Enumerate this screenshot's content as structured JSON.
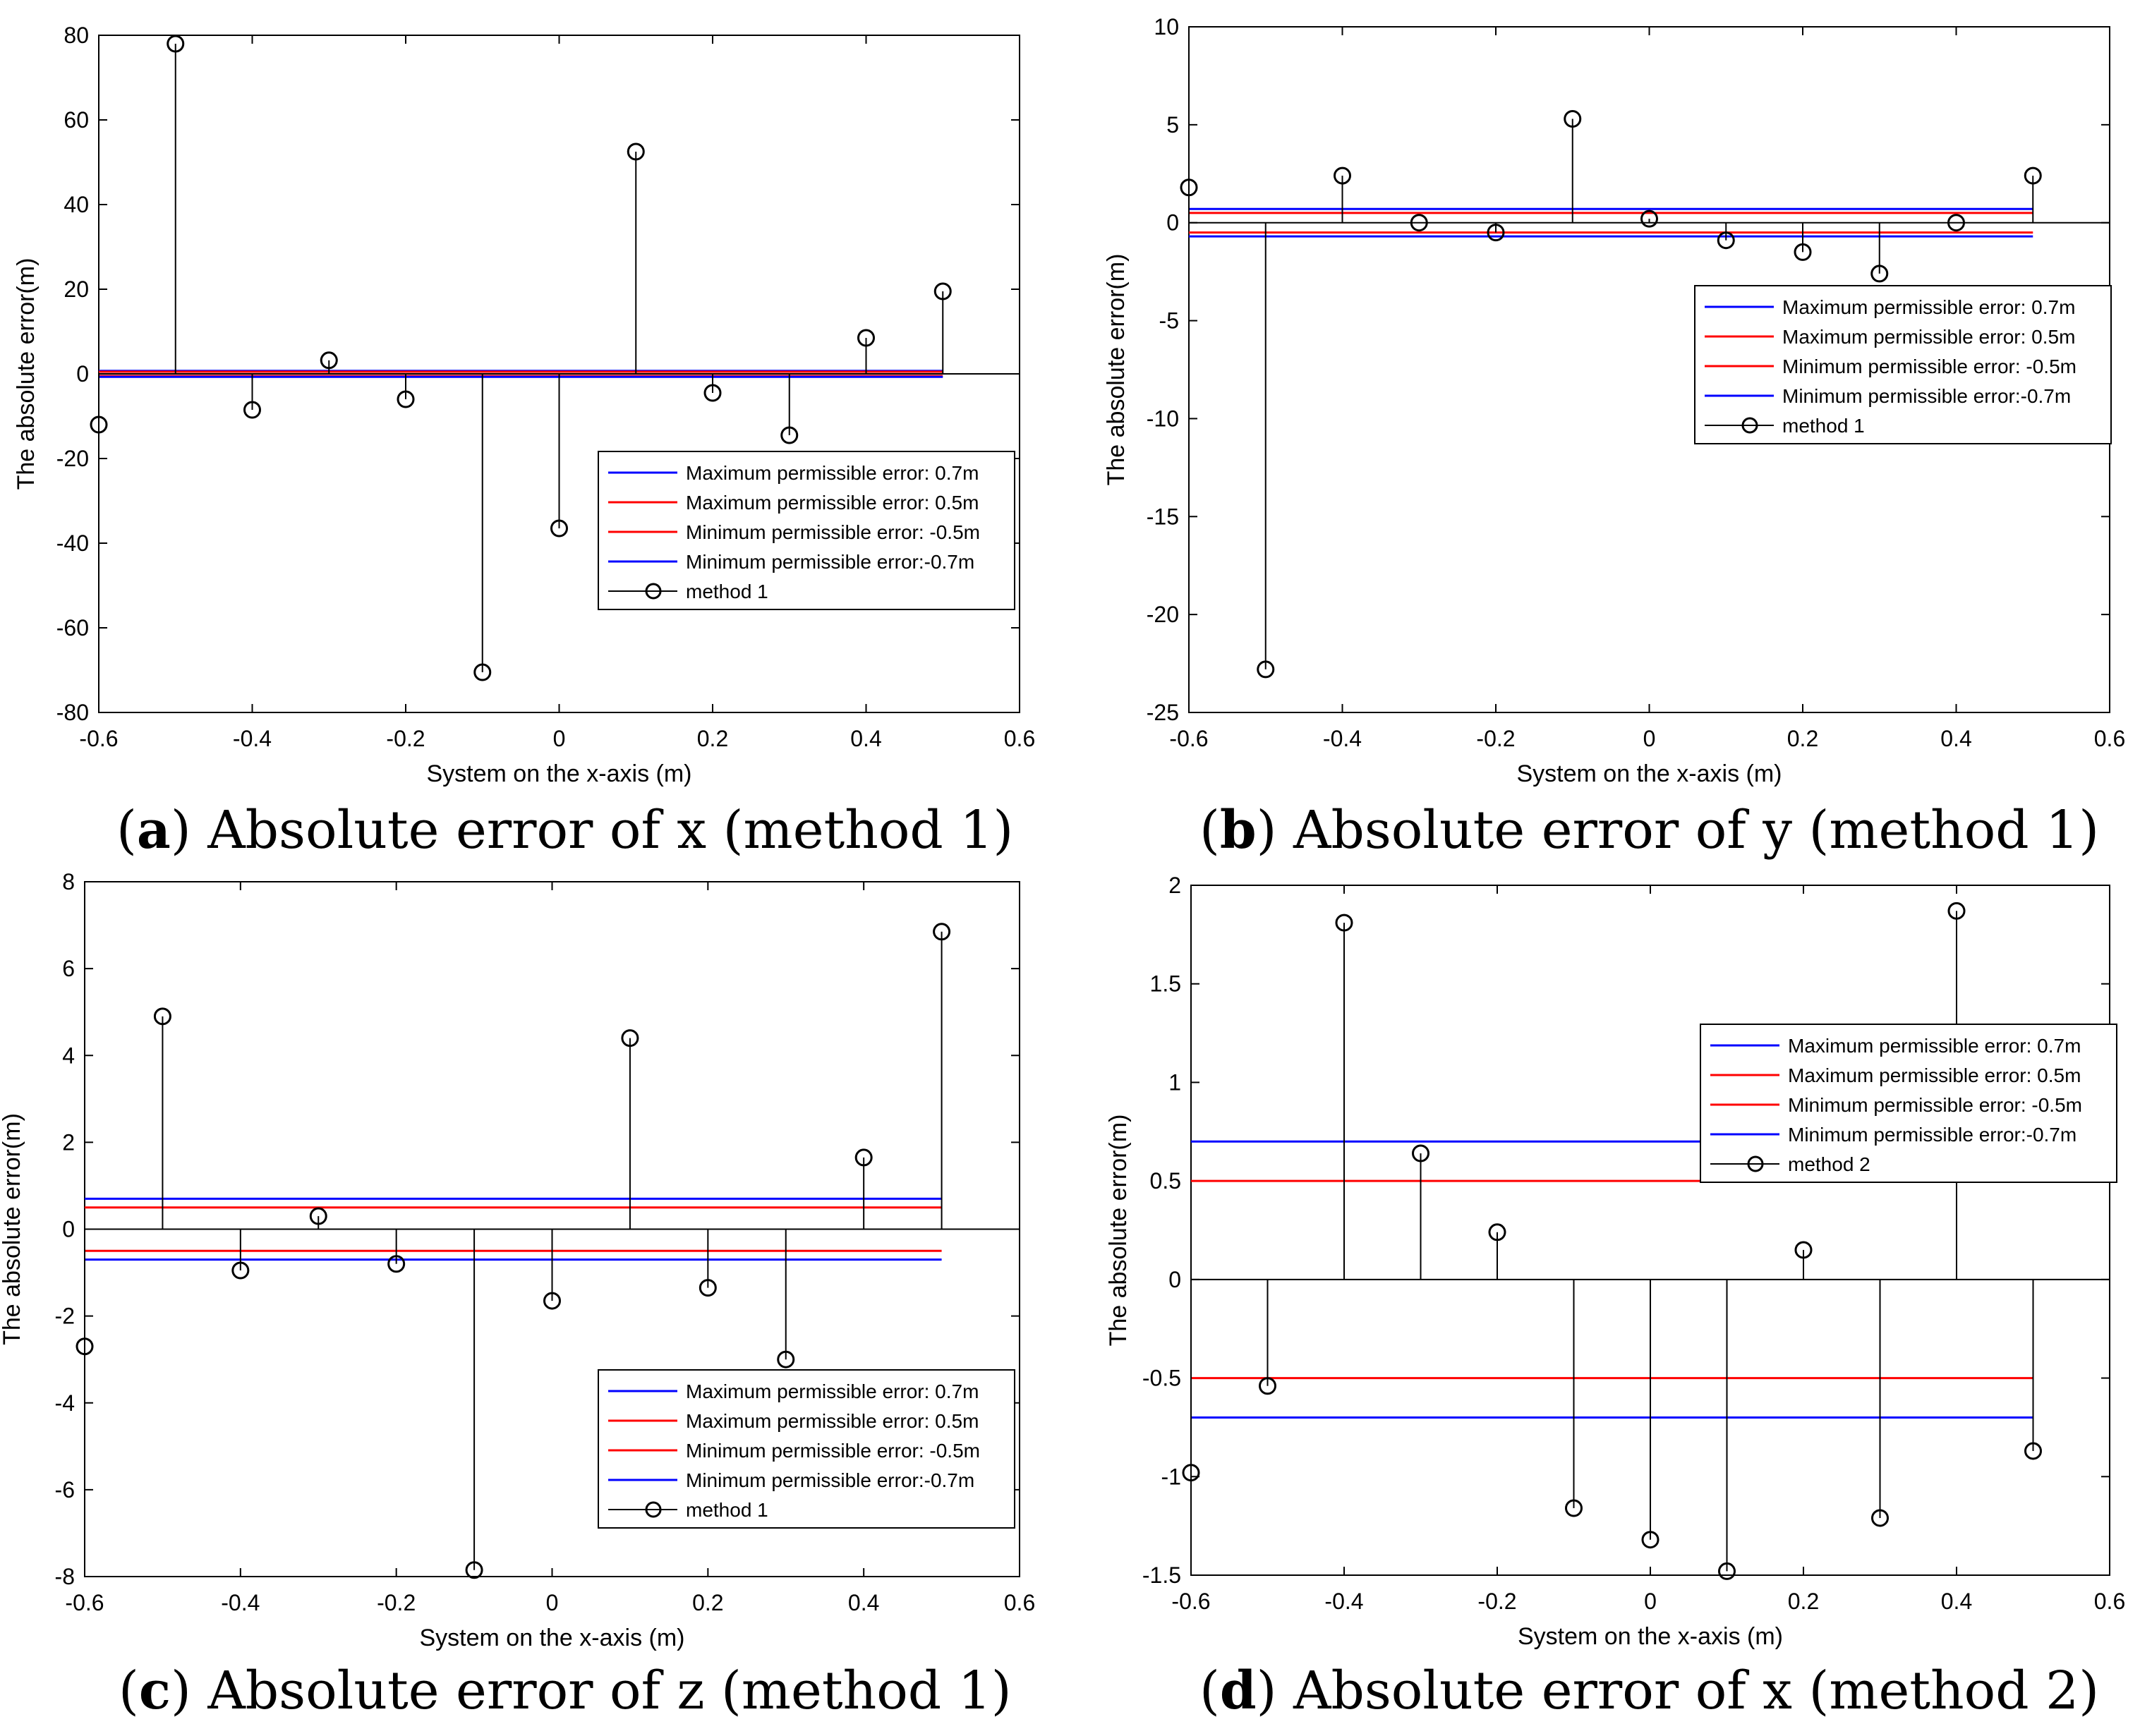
{
  "figure": {
    "captions": [
      {
        "letter": "a",
        "open": "(",
        "close": ")",
        "text": " Absolute error of x (method 1)"
      },
      {
        "letter": "b",
        "open": "(",
        "close": ")",
        "text": " Absolute error of y (method 1)"
      },
      {
        "letter": "c",
        "open": "(",
        "close": ")",
        "text": " Absolute error of z (method 1)"
      },
      {
        "letter": "d",
        "open": "(",
        "close": ")",
        "text": " Absolute error of x (method 2)"
      }
    ]
  },
  "chart_data": [
    {
      "type": "stem",
      "panel": "a",
      "title": "",
      "xlabel": "System on the x-axis (m)",
      "ylabel": "The absolute error(m)",
      "xlim": [
        -0.6,
        0.6
      ],
      "ylim": [
        -80,
        80
      ],
      "xticks": [
        -0.6,
        -0.4,
        -0.2,
        0,
        0.2,
        0.4,
        0.6
      ],
      "xtick_labels": [
        "-0.6",
        "-0.4",
        "-0.2",
        "0",
        "0.2",
        "0.4",
        "0.6"
      ],
      "yticks": [
        -80,
        -60,
        -40,
        -20,
        0,
        20,
        40,
        60,
        80
      ],
      "ytick_labels": [
        "-80",
        "-60",
        "-40",
        "-20",
        "0",
        "20",
        "40",
        "60",
        "80"
      ],
      "x": [
        -0.6,
        -0.5,
        -0.4,
        -0.3,
        -0.2,
        -0.1,
        0,
        0.1,
        0.2,
        0.3,
        0.4,
        0.5
      ],
      "stem_series": {
        "name": "method 1",
        "color": "#000000",
        "values": [
          -12,
          78,
          -8.5,
          3.2,
          -6,
          -70.5,
          -36.5,
          52.5,
          -4.5,
          -14.5,
          8.5,
          19.5
        ]
      },
      "ref_lines": [
        {
          "name": "Maximum permissible error: 0.7m",
          "value": 0.7,
          "color": "#0000ff"
        },
        {
          "name": "Maximum permissible error: 0.5m",
          "value": 0.5,
          "color": "#ff0000"
        },
        {
          "name": "Minimum permissible error: -0.5m",
          "value": -0.5,
          "color": "#ff0000"
        },
        {
          "name": "Minimum permissible error:-0.7m",
          "value": -0.7,
          "color": "#0000ff"
        }
      ],
      "ref_xrange": [
        -0.6,
        0.5
      ],
      "legend_position": "lower-right"
    },
    {
      "type": "stem",
      "panel": "b",
      "title": "",
      "xlabel": "System on the x-axis (m)",
      "ylabel": "The absolute error(m)",
      "xlim": [
        -0.6,
        0.6
      ],
      "ylim": [
        -25,
        10
      ],
      "xticks": [
        -0.6,
        -0.4,
        -0.2,
        0,
        0.2,
        0.4,
        0.6
      ],
      "xtick_labels": [
        "-0.6",
        "-0.4",
        "-0.2",
        "0",
        "0.2",
        "0.4",
        "0.6"
      ],
      "yticks": [
        -25,
        -20,
        -15,
        -10,
        -5,
        0,
        5,
        10
      ],
      "ytick_labels": [
        "-25",
        "-20",
        "-15",
        "-10",
        "-5",
        "0",
        "5",
        "10"
      ],
      "x": [
        -0.6,
        -0.5,
        -0.4,
        -0.3,
        -0.2,
        -0.1,
        0,
        0.1,
        0.2,
        0.3,
        0.4,
        0.5
      ],
      "stem_series": {
        "name": "method 1",
        "color": "#000000",
        "values": [
          1.8,
          -22.8,
          2.4,
          0.0,
          -0.5,
          5.3,
          0.2,
          -0.9,
          -1.5,
          -2.6,
          0.0,
          2.4
        ]
      },
      "ref_lines": [
        {
          "name": "Maximum permissible error: 0.7m",
          "value": 0.7,
          "color": "#0000ff"
        },
        {
          "name": "Maximum permissible error: 0.5m",
          "value": 0.5,
          "color": "#ff0000"
        },
        {
          "name": "Minimum permissible error: -0.5m",
          "value": -0.5,
          "color": "#ff0000"
        },
        {
          "name": "Minimum permissible error:-0.7m",
          "value": -0.7,
          "color": "#0000ff"
        }
      ],
      "ref_xrange": [
        -0.6,
        0.5
      ],
      "legend_position": "upper-right"
    },
    {
      "type": "stem",
      "panel": "c",
      "title": "",
      "xlabel": "System on the x-axis (m)",
      "ylabel": "The absolute error(m)",
      "xlim": [
        -0.6,
        0.6
      ],
      "ylim": [
        -8,
        8
      ],
      "xticks": [
        -0.6,
        -0.4,
        -0.2,
        0,
        0.2,
        0.4,
        0.6
      ],
      "xtick_labels": [
        "-0.6",
        "-0.4",
        "-0.2",
        "0",
        "0.2",
        "0.4",
        "0.6"
      ],
      "yticks": [
        -8,
        -6,
        -4,
        -2,
        0,
        2,
        4,
        6,
        8
      ],
      "ytick_labels": [
        "-8",
        "-6",
        "-4",
        "-2",
        "0",
        "2",
        "4",
        "6",
        "8"
      ],
      "x": [
        -0.6,
        -0.5,
        -0.4,
        -0.3,
        -0.2,
        -0.1,
        0,
        0.1,
        0.2,
        0.3,
        0.4,
        0.5
      ],
      "stem_series": {
        "name": "method 1",
        "color": "#000000",
        "values": [
          -2.7,
          4.9,
          -0.95,
          0.3,
          -0.8,
          -7.85,
          -1.65,
          4.4,
          -1.35,
          -3.0,
          1.65,
          6.85
        ]
      },
      "ref_lines": [
        {
          "name": "Maximum permissible error: 0.7m",
          "value": 0.7,
          "color": "#0000ff"
        },
        {
          "name": "Maximum permissible error: 0.5m",
          "value": 0.5,
          "color": "#ff0000"
        },
        {
          "name": "Minimum permissible error: -0.5m",
          "value": -0.5,
          "color": "#ff0000"
        },
        {
          "name": "Minimum permissible error:-0.7m",
          "value": -0.7,
          "color": "#0000ff"
        }
      ],
      "ref_xrange": [
        -0.6,
        0.5
      ],
      "legend_position": "lower-right"
    },
    {
      "type": "stem",
      "panel": "d",
      "title": "",
      "xlabel": "System on the x-axis (m)",
      "ylabel": "The absolute error(m)",
      "xlim": [
        -0.6,
        0.6
      ],
      "ylim": [
        -1.5,
        2
      ],
      "xticks": [
        -0.6,
        -0.4,
        -0.2,
        0,
        0.2,
        0.4,
        0.6
      ],
      "xtick_labels": [
        "-0.6",
        "-0.4",
        "-0.2",
        "0",
        "0.2",
        "0.4",
        "0.6"
      ],
      "yticks": [
        -1.5,
        -1,
        -0.5,
        0,
        0.5,
        1,
        1.5,
        2
      ],
      "ytick_labels": [
        "-1.5",
        "-1",
        "-0.5",
        "0",
        "0.5",
        "1",
        "1.5",
        "2"
      ],
      "x": [
        -0.6,
        -0.5,
        -0.4,
        -0.3,
        -0.2,
        -0.1,
        0,
        0.1,
        0.2,
        0.3,
        0.4,
        0.5
      ],
      "stem_series": {
        "name": "method 2",
        "color": "#000000",
        "values": [
          -0.98,
          -0.54,
          1.81,
          0.64,
          0.24,
          -1.16,
          -1.32,
          -1.48,
          0.15,
          -1.21,
          1.87,
          -0.87
        ]
      },
      "ref_lines": [
        {
          "name": "Maximum permissible error: 0.7m",
          "value": 0.7,
          "color": "#0000ff"
        },
        {
          "name": "Maximum permissible error: 0.5m",
          "value": 0.5,
          "color": "#ff0000"
        },
        {
          "name": "Minimum permissible error: -0.5m",
          "value": -0.5,
          "color": "#ff0000"
        },
        {
          "name": "Minimum permissible error:-0.7m",
          "value": -0.7,
          "color": "#0000ff"
        }
      ],
      "ref_xrange": [
        -0.6,
        0.5
      ],
      "legend_position": "upper-right"
    }
  ]
}
